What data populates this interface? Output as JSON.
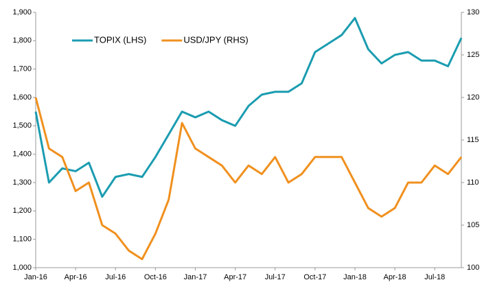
{
  "chart_data": {
    "type": "line",
    "categories": [
      "Jan-16",
      null,
      null,
      "Apr-16",
      null,
      null,
      "Jul-16",
      null,
      null,
      "Oct-16",
      null,
      null,
      "Jan-17",
      null,
      null,
      "Apr-17",
      null,
      null,
      "Jul-17",
      null,
      null,
      "Oct-17",
      null,
      null,
      "Jan-18",
      null,
      null,
      "Apr-18",
      null,
      null,
      "Jul-18",
      null,
      null
    ],
    "series": [
      {
        "name": "TOPIX (LHS)",
        "color": "#1a9cb0",
        "values": [
          1550,
          1300,
          1350,
          1340,
          1370,
          1250,
          1320,
          1330,
          1320,
          1390,
          1470,
          1550,
          1530,
          1550,
          1520,
          1500,
          1570,
          1610,
          1620,
          1620,
          1650,
          1760,
          1790,
          1820,
          1880,
          1770,
          1720,
          1750,
          1760,
          1730,
          1730,
          1710,
          1810
        ]
      },
      {
        "name": "USD/JPY (RHS)",
        "color": "#f0901e",
        "axis": "y2",
        "values": [
          120,
          114,
          113,
          109,
          110,
          105,
          104,
          102,
          101,
          104,
          108,
          117,
          114,
          113,
          112,
          110,
          112,
          111,
          113,
          110,
          111,
          113,
          113,
          113,
          110,
          107,
          106,
          107,
          110,
          110,
          112,
          111,
          113
        ]
      }
    ],
    "ylim": [
      1000,
      1900
    ],
    "yticks": [
      {
        "value": 1000,
        "label": "1,000"
      },
      {
        "value": 1100,
        "label": "1,100"
      },
      {
        "value": 1200,
        "label": "1,200"
      },
      {
        "value": 1300,
        "label": "1,300"
      },
      {
        "value": 1400,
        "label": "1,400"
      },
      {
        "value": 1500,
        "label": "1,500"
      },
      {
        "value": 1600,
        "label": "1,600"
      },
      {
        "value": 1700,
        "label": "1,700"
      },
      {
        "value": 1800,
        "label": "1,800"
      },
      {
        "value": 1900,
        "label": "1,900"
      }
    ],
    "y2lim": [
      100,
      130
    ],
    "y2ticks": [
      100,
      105,
      110,
      115,
      120,
      125,
      130
    ],
    "legend": "top",
    "grid": false
  }
}
